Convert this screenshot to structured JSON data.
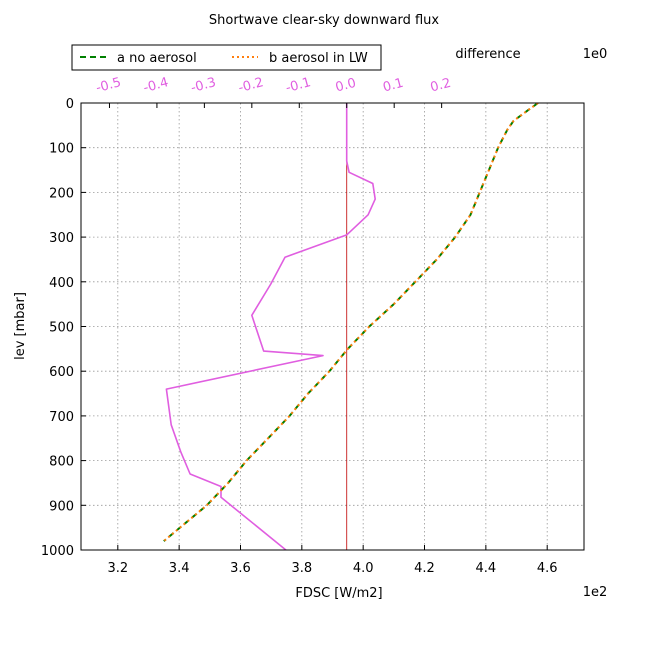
{
  "chart_data": {
    "type": "line",
    "title": "Shortwave clear-sky downward flux",
    "xlabel": "FDSC [W/m2]",
    "x_multiplier": "1e2",
    "ylabel": "lev [mbar]",
    "top_axis_label": "difference",
    "top_multiplier": "1e0",
    "xlim": [
      3.08,
      4.72
    ],
    "ylim": [
      1000,
      0
    ],
    "top_xlim": [
      -0.56,
      0.5
    ],
    "x_ticks": [
      "3.2",
      "3.4",
      "3.6",
      "3.8",
      "4.0",
      "4.2",
      "4.4",
      "4.6"
    ],
    "y_ticks": [
      "0",
      "100",
      "200",
      "300",
      "400",
      "500",
      "600",
      "700",
      "800",
      "900",
      "1000"
    ],
    "top_ticks": [
      "-0.5",
      "-0.4",
      "-0.3",
      "-0.2",
      "-0.1",
      "0.0",
      "0.1",
      "0.2"
    ],
    "grid": true,
    "legend": {
      "location": "top-left, above plot",
      "columns": 2
    },
    "series": [
      {
        "name": "a no aerosol",
        "axis": "bottom",
        "color": "#008000",
        "style": "dashed",
        "x": [
          4.57,
          4.53,
          4.49,
          4.47,
          4.44,
          4.41,
          4.38,
          4.35,
          4.3,
          4.24,
          4.17,
          4.1,
          4.02,
          3.95,
          3.89,
          3.82,
          3.76,
          3.69,
          3.62,
          3.56,
          3.49,
          3.42,
          3.35
        ],
        "y": [
          0,
          20,
          40,
          60,
          100,
          150,
          200,
          250,
          300,
          350,
          400,
          450,
          500,
          550,
          600,
          650,
          700,
          750,
          800,
          850,
          900,
          940,
          980
        ]
      },
      {
        "name": "b aerosol in LW",
        "axis": "bottom",
        "color": "#ff7f0e",
        "style": "dotted",
        "x": [
          4.57,
          4.53,
          4.49,
          4.47,
          4.44,
          4.41,
          4.38,
          4.35,
          4.3,
          4.24,
          4.17,
          4.1,
          4.02,
          3.95,
          3.89,
          3.82,
          3.76,
          3.69,
          3.62,
          3.56,
          3.49,
          3.42,
          3.35
        ],
        "y": [
          0,
          20,
          40,
          60,
          100,
          150,
          200,
          250,
          300,
          350,
          400,
          450,
          500,
          550,
          600,
          650,
          700,
          750,
          800,
          850,
          900,
          940,
          980
        ]
      },
      {
        "axis": "top",
        "color": "#e05ee0",
        "style": "solid",
        "x": [
          0.0,
          0.0,
          0.0,
          0.005,
          0.055,
          0.06,
          0.045,
          0.0,
          -0.13,
          -0.16,
          -0.2,
          -0.175,
          -0.05,
          -0.38,
          -0.37,
          -0.35,
          -0.33,
          -0.265,
          -0.265,
          -0.07,
          -0.025,
          -0.015
        ],
        "y": [
          0,
          80,
          130,
          155,
          180,
          215,
          250,
          295,
          345,
          405,
          475,
          555,
          565,
          640,
          720,
          780,
          830,
          858,
          882,
          1050,
          1065,
          1080
        ]
      }
    ],
    "reference_line": {
      "axis": "top",
      "x": 0.0,
      "color": "#c00000"
    }
  }
}
